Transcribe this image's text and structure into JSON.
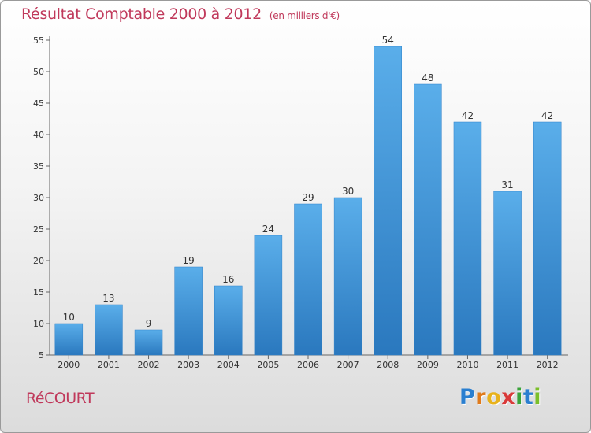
{
  "chart_data": {
    "type": "bar",
    "title": "Résultat Comptable 2000 à 2012",
    "subtitle": "(en milliers d'€)",
    "categories": [
      "2000",
      "2001",
      "2002",
      "2003",
      "2004",
      "2005",
      "2006",
      "2007",
      "2008",
      "2009",
      "2010",
      "2011",
      "2012"
    ],
    "values": [
      10,
      13,
      9,
      19,
      16,
      24,
      29,
      30,
      54,
      48,
      42,
      31,
      42
    ],
    "xlabel": "",
    "ylabel": "",
    "ylim": [
      5,
      55
    ],
    "yticks": [
      5,
      10,
      15,
      20,
      25,
      30,
      35,
      40,
      45,
      50,
      55
    ],
    "grid": false,
    "bar_color": "#3d8fd4"
  },
  "commune": "RéCOURT",
  "logo": {
    "letters": [
      "P",
      "r",
      "o",
      "x",
      "i",
      "t",
      "i"
    ],
    "colors": [
      "#2a7fd0",
      "#e07b1c",
      "#e8b21c",
      "#d93a3a",
      "#3aa33a",
      "#2a7fd0",
      "#7bbf2a"
    ]
  }
}
